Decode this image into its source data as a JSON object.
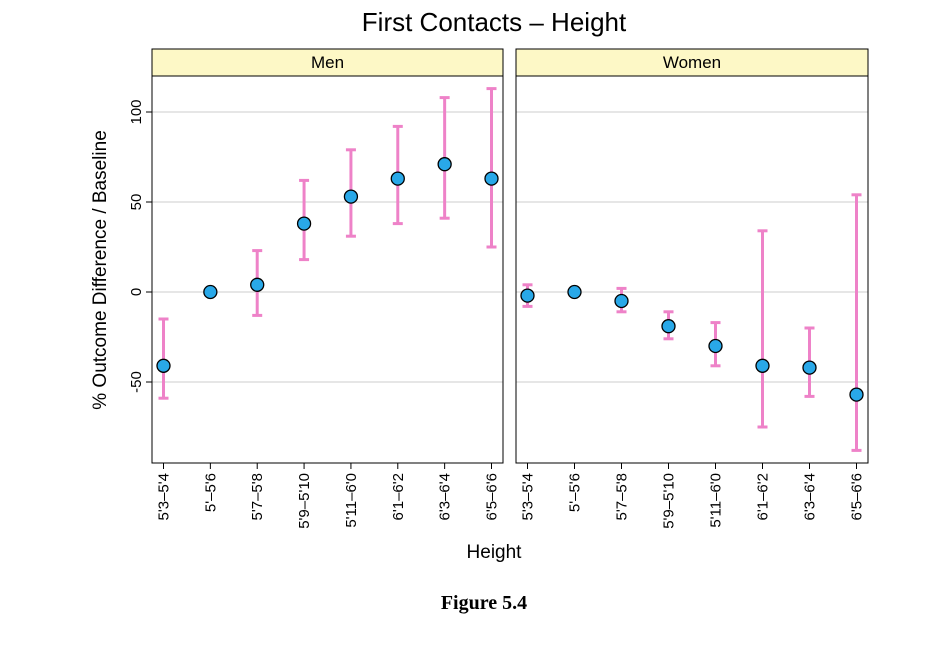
{
  "figure_caption": "Figure 5.4",
  "chart_data": {
    "type": "scatter",
    "title": "First Contacts – Height",
    "xlabel": "Height",
    "ylabel": "% Outcome Difference / Baseline",
    "categories": [
      "5'3–5'4",
      "5'–5'6",
      "5'7–5'8",
      "5'9–5'10",
      "5'11–6'0",
      "6'1–6'2",
      "6'3–6'4",
      "6'5–6'6"
    ],
    "yticks": [
      -50,
      0,
      50,
      100
    ],
    "ylim": [
      -95,
      120
    ],
    "grid": true,
    "colors": {
      "point": "#29a8e8",
      "errorbar": "#ee82c8",
      "strip": "#fdf8c6",
      "grid": "#d8d8d8"
    },
    "panels": [
      {
        "name": "Men",
        "points": [
          {
            "category": "5'3–5'4",
            "value": -41,
            "lower": -59,
            "upper": -15
          },
          {
            "category": "5'–5'6",
            "value": 0,
            "lower": null,
            "upper": null
          },
          {
            "category": "5'7–5'8",
            "value": 4,
            "lower": -13,
            "upper": 23
          },
          {
            "category": "5'9–5'10",
            "value": 38,
            "lower": 18,
            "upper": 62
          },
          {
            "category": "5'11–6'0",
            "value": 53,
            "lower": 31,
            "upper": 79
          },
          {
            "category": "6'1–6'2",
            "value": 63,
            "lower": 38,
            "upper": 92
          },
          {
            "category": "6'3–6'4",
            "value": 71,
            "lower": 41,
            "upper": 108
          },
          {
            "category": "6'5–6'6",
            "value": 63,
            "lower": 25,
            "upper": 113
          }
        ]
      },
      {
        "name": "Women",
        "points": [
          {
            "category": "5'3–5'4",
            "value": -2,
            "lower": -8,
            "upper": 4
          },
          {
            "category": "5'–5'6",
            "value": 0,
            "lower": null,
            "upper": null
          },
          {
            "category": "5'7–5'8",
            "value": -5,
            "lower": -11,
            "upper": 2
          },
          {
            "category": "5'9–5'10",
            "value": -19,
            "lower": -26,
            "upper": -11
          },
          {
            "category": "5'11–6'0",
            "value": -30,
            "lower": -41,
            "upper": -17
          },
          {
            "category": "6'1–6'2",
            "value": -41,
            "lower": -75,
            "upper": 34
          },
          {
            "category": "6'3–6'4",
            "value": -42,
            "lower": -58,
            "upper": -20
          },
          {
            "category": "6'5–6'6",
            "value": -57,
            "lower": -88,
            "upper": 54
          }
        ]
      }
    ]
  }
}
